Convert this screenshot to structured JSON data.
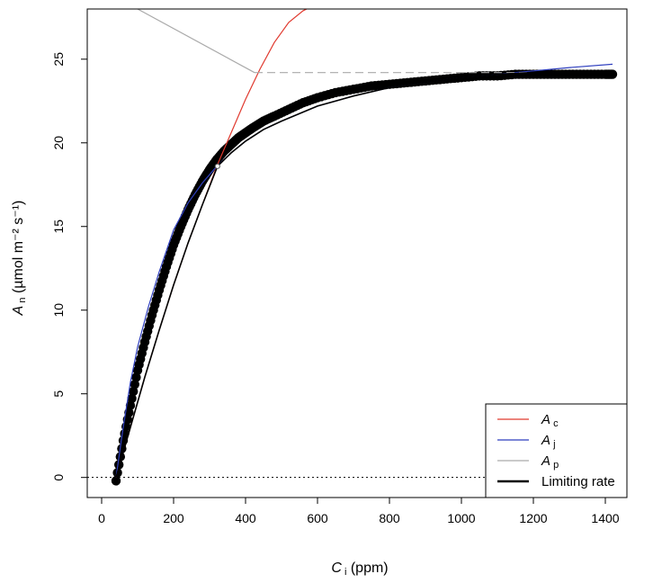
{
  "chart_data": {
    "type": "line",
    "xlabel": {
      "symbol": "C",
      "sub": "i",
      "unit": "(ppm)"
    },
    "ylabel": {
      "symbol": "A",
      "sub": "n",
      "unit": "(µmol m⁻² s⁻¹)"
    },
    "xlim": [
      -40,
      1460
    ],
    "ylim": [
      -1.2,
      28
    ],
    "xticks": [
      0,
      200,
      400,
      600,
      800,
      1000,
      1200,
      1400
    ],
    "yticks": [
      0,
      5,
      10,
      15,
      20,
      25
    ],
    "grid": false,
    "legend_position": "bottom-right",
    "colors": {
      "Ac": "#e03a2f",
      "Aj": "#2f3fbf",
      "Ap": "#aaaaaa",
      "limiting": "#000000",
      "points": "#000000"
    },
    "legend": [
      {
        "symbol": "A",
        "sub": "c",
        "series": "Ac"
      },
      {
        "symbol": "A",
        "sub": "j",
        "series": "Aj"
      },
      {
        "symbol": "A",
        "sub": "p",
        "series": "Ap"
      },
      {
        "label": "Limiting rate",
        "series": "limiting"
      }
    ],
    "series": [
      {
        "key": "Ac",
        "x": [
          40,
          80,
          120,
          160,
          200,
          240,
          280,
          320,
          360,
          400,
          440,
          480,
          520,
          560,
          570
        ],
        "y": [
          0,
          3.0,
          6.0,
          8.8,
          11.5,
          14.0,
          16.3,
          18.6,
          20.6,
          22.6,
          24.4,
          26.0,
          27.2,
          27.9,
          28.0
        ]
      },
      {
        "key": "Aj",
        "x": [
          40,
          60,
          80,
          100,
          130,
          160,
          200,
          240,
          280,
          320,
          360,
          400,
          450,
          500,
          600,
          700,
          800,
          900,
          1000,
          1100,
          1200,
          1300,
          1420
        ],
        "y": [
          0,
          3.0,
          5.7,
          7.8,
          10.2,
          12.3,
          14.8,
          16.4,
          17.6,
          18.6,
          19.4,
          20.1,
          20.8,
          21.3,
          22.2,
          22.8,
          23.3,
          23.6,
          23.9,
          24.1,
          24.3,
          24.5,
          24.7
        ]
      },
      {
        "key": "Ap",
        "x": [
          100,
          425
        ],
        "y": [
          28.0,
          24.2
        ],
        "dash": false
      },
      {
        "key": "Ap_flat",
        "x": [
          425,
          1420
        ],
        "y": [
          24.2,
          24.2
        ],
        "dash": true
      },
      {
        "key": "limiting",
        "x": [
          40,
          80,
          120,
          160,
          200,
          240,
          280,
          322,
          360,
          400,
          450,
          500,
          600,
          700,
          800,
          900,
          1000,
          1100,
          1200,
          1300,
          1420
        ],
        "y": [
          0,
          3.0,
          6.0,
          8.8,
          11.5,
          14.0,
          16.3,
          18.6,
          19.4,
          20.1,
          20.8,
          21.3,
          22.2,
          22.8,
          23.3,
          23.6,
          23.9,
          24.1,
          24.2,
          24.2,
          24.2
        ]
      }
    ],
    "points": {
      "x": [
        40,
        60,
        80,
        100,
        120,
        140,
        160,
        180,
        200,
        220,
        240,
        260,
        280,
        300,
        320,
        340,
        360,
        380,
        400,
        420,
        450,
        480,
        520,
        560,
        600,
        650,
        700,
        750,
        800,
        850,
        900,
        950,
        1000,
        1050,
        1100,
        1150,
        1200,
        1250,
        1300,
        1350,
        1400,
        1420
      ],
      "y": [
        -0.2,
        2.2,
        4.3,
        6.4,
        8.1,
        9.7,
        11.2,
        12.6,
        13.9,
        15.0,
        16.0,
        16.9,
        17.7,
        18.4,
        19.0,
        19.5,
        19.9,
        20.3,
        20.6,
        20.9,
        21.3,
        21.6,
        22.0,
        22.4,
        22.7,
        23.0,
        23.2,
        23.4,
        23.5,
        23.6,
        23.7,
        23.8,
        23.9,
        24.0,
        24.0,
        24.1,
        24.1,
        24.1,
        24.1,
        24.1,
        24.1,
        24.1
      ]
    },
    "transition_point": {
      "x": 322,
      "y": 18.6
    },
    "reference_line_y": 0
  }
}
